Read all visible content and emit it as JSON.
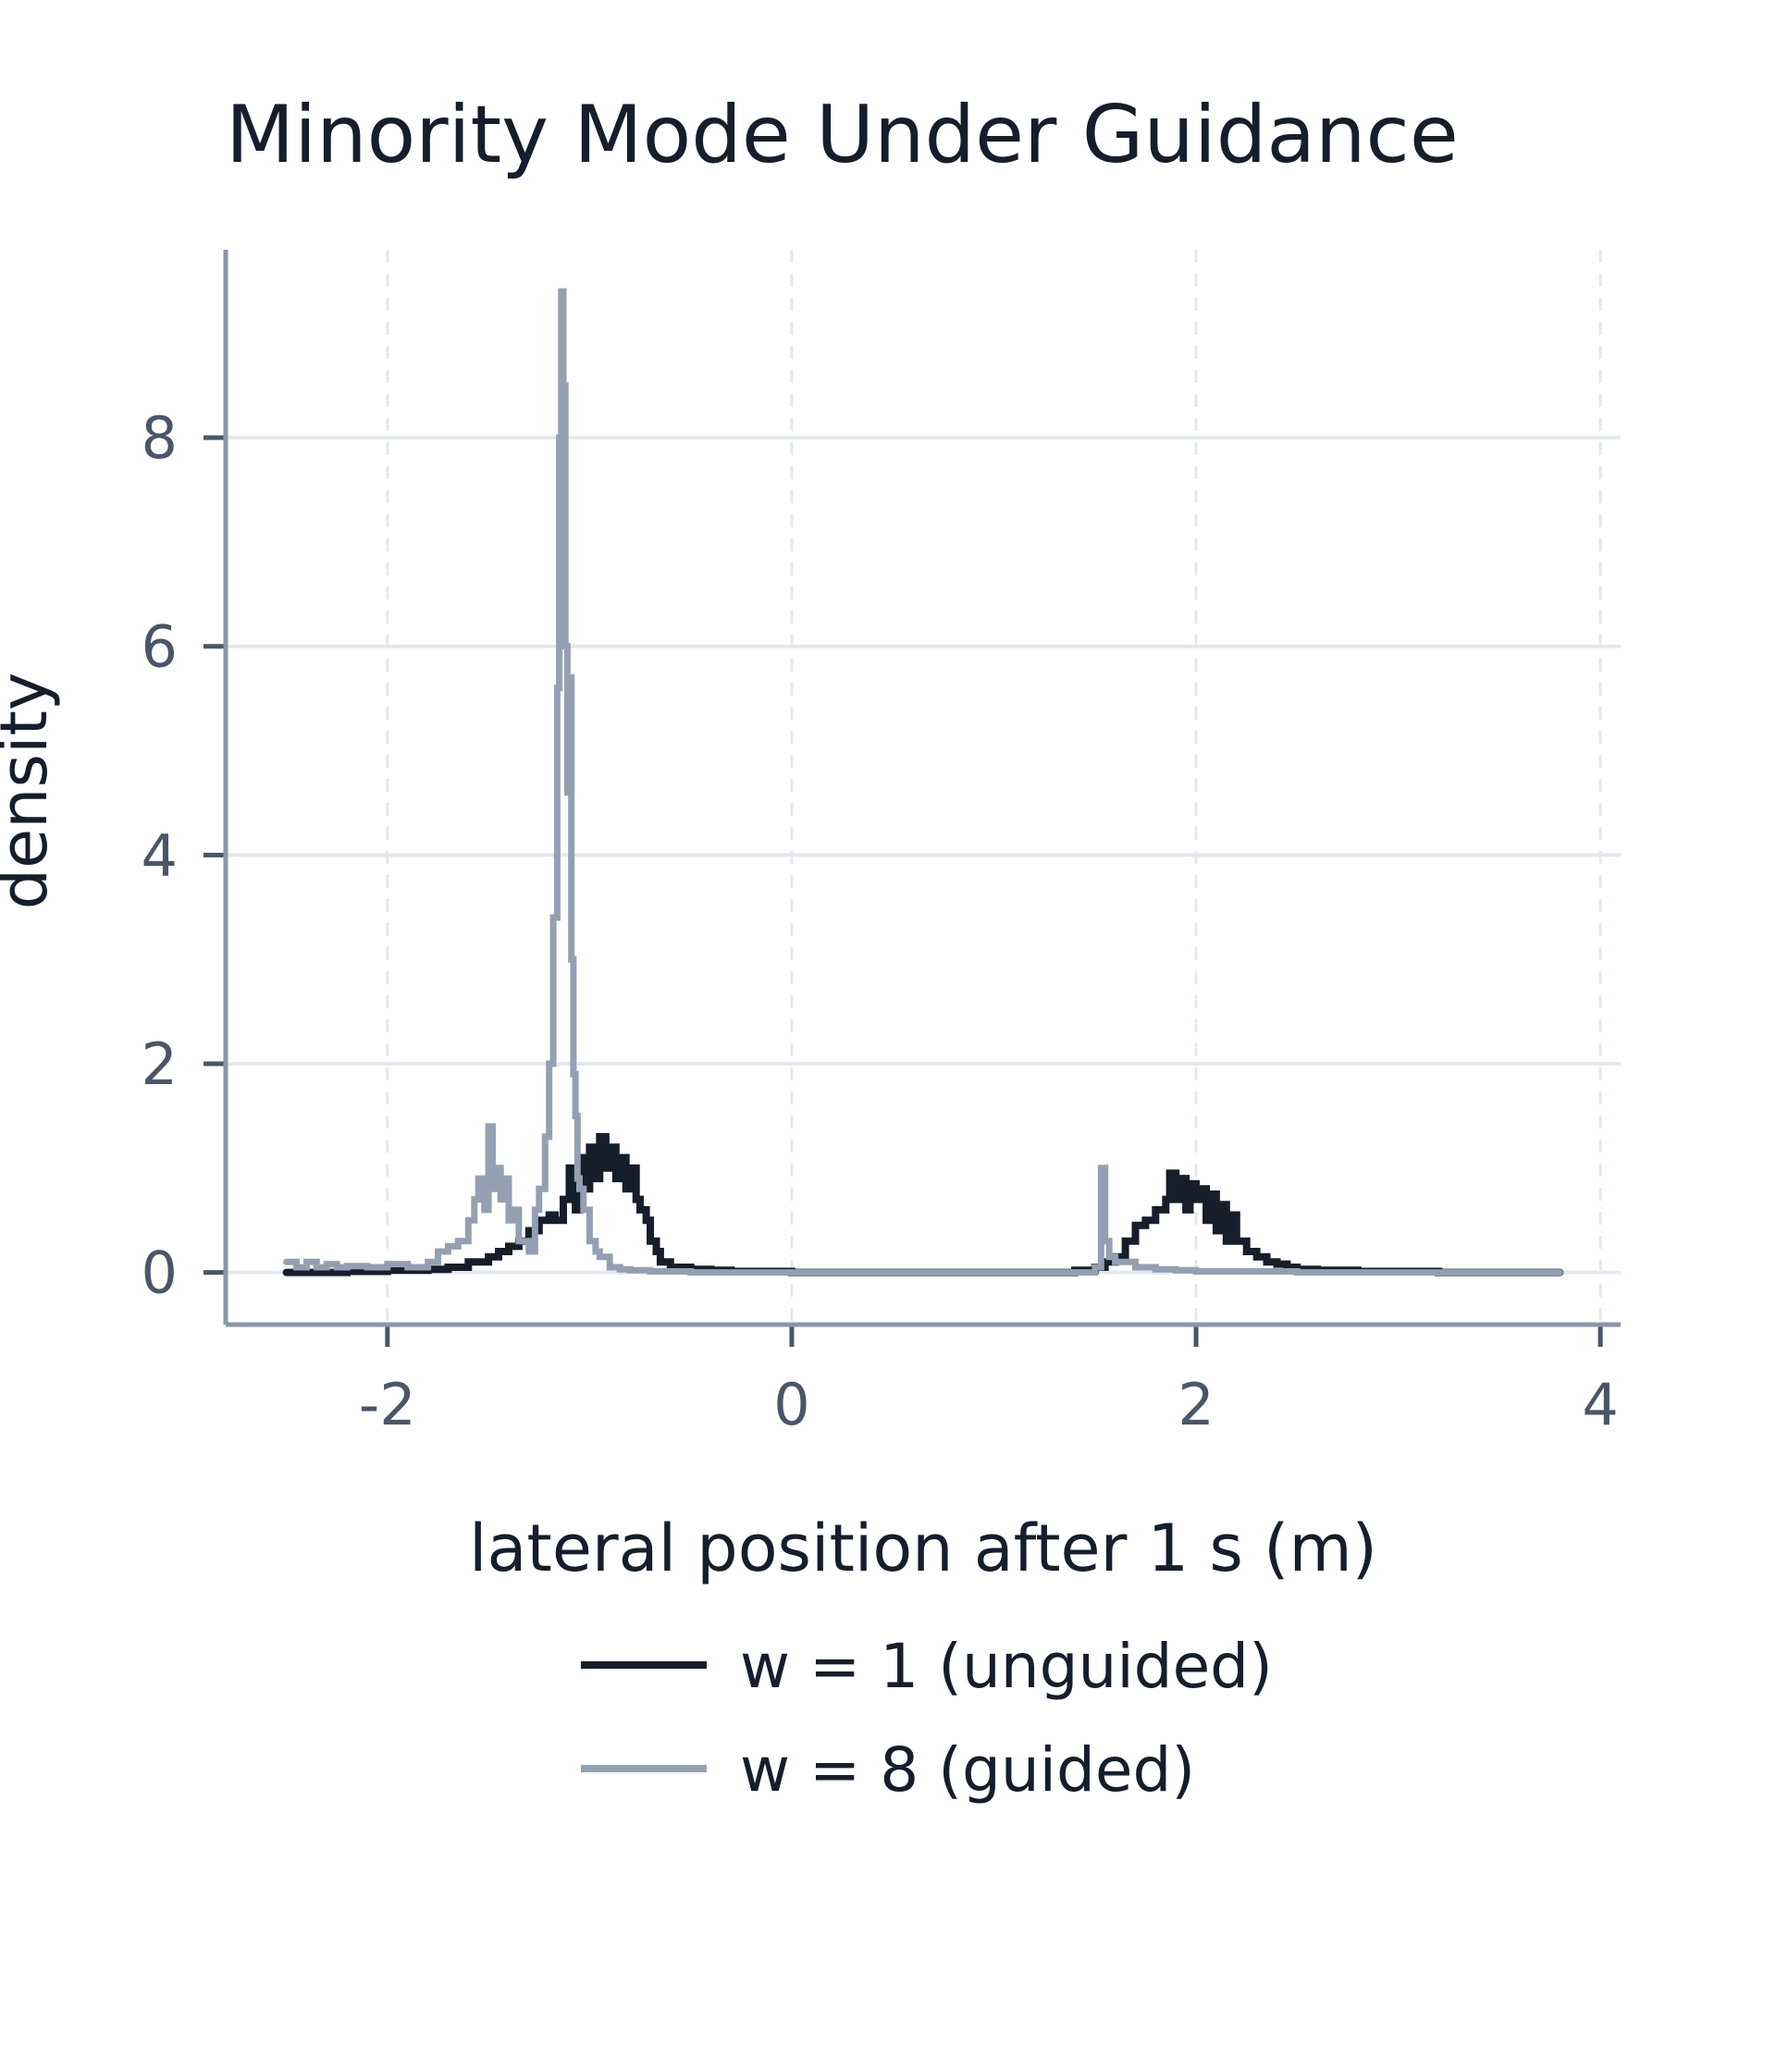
{
  "chart_data": {
    "type": "line",
    "title": "Minority Mode Under Guidance",
    "xlabel": "lateral position after 1 s (m)",
    "ylabel": "density",
    "xlim": [
      -2.8,
      4.1
    ],
    "ylim": [
      -0.5,
      9.8
    ],
    "x_ticks": [
      -2,
      0,
      2,
      4
    ],
    "y_ticks": [
      0,
      2,
      4,
      6,
      8
    ],
    "x_tick_labels": [
      "-2",
      "0",
      "2",
      "4"
    ],
    "y_tick_labels": [
      "0",
      "2",
      "4",
      "6",
      "8"
    ],
    "grid": true,
    "legend_position": "bottom",
    "step_style": "histogram",
    "series": [
      {
        "name": "w = 1 (unguided)",
        "color": "#161d2b",
        "x": [
          -2.5,
          -2.2,
          -2.0,
          -1.8,
          -1.7,
          -1.6,
          -1.5,
          -1.45,
          -1.4,
          -1.35,
          -1.3,
          -1.25,
          -1.2,
          -1.17,
          -1.13,
          -1.1,
          -1.07,
          -1.05,
          -1.02,
          -1.0,
          -0.97,
          -0.95,
          -0.92,
          -0.9,
          -0.87,
          -0.85,
          -0.82,
          -0.8,
          -0.77,
          -0.75,
          -0.72,
          -0.7,
          -0.67,
          -0.65,
          -0.6,
          -0.55,
          -0.5,
          -0.4,
          -0.3,
          -0.2,
          0.0,
          1.0,
          1.4,
          1.5,
          1.55,
          1.6,
          1.65,
          1.7,
          1.75,
          1.8,
          1.85,
          1.87,
          1.9,
          1.92,
          1.95,
          1.97,
          2.0,
          2.03,
          2.05,
          2.08,
          2.1,
          2.13,
          2.15,
          2.18,
          2.2,
          2.25,
          2.3,
          2.35,
          2.4,
          2.45,
          2.5,
          2.6,
          2.8,
          3.2,
          3.8
        ],
        "values": [
          0.0,
          0.01,
          0.02,
          0.03,
          0.05,
          0.1,
          0.15,
          0.2,
          0.25,
          0.3,
          0.4,
          0.5,
          0.55,
          0.5,
          0.7,
          1.0,
          0.6,
          1.1,
          0.8,
          1.2,
          0.9,
          1.3,
          1.0,
          1.2,
          0.9,
          1.1,
          0.8,
          1.0,
          0.7,
          0.6,
          0.5,
          0.3,
          0.2,
          0.1,
          0.05,
          0.05,
          0.03,
          0.02,
          0.01,
          0.01,
          0.0,
          0.0,
          0.02,
          0.05,
          0.1,
          0.15,
          0.3,
          0.45,
          0.5,
          0.6,
          0.7,
          0.95,
          0.7,
          0.9,
          0.6,
          0.85,
          0.7,
          0.8,
          0.5,
          0.75,
          0.4,
          0.65,
          0.3,
          0.55,
          0.3,
          0.2,
          0.15,
          0.1,
          0.08,
          0.05,
          0.03,
          0.02,
          0.01,
          0.0,
          0.0
        ]
      },
      {
        "name": "w = 8 (guided)",
        "color": "#94a0b2",
        "x": [
          -2.5,
          -2.45,
          -2.4,
          -2.35,
          -2.3,
          -2.25,
          -2.2,
          -2.1,
          -2.0,
          -1.9,
          -1.8,
          -1.75,
          -1.7,
          -1.65,
          -1.6,
          -1.57,
          -1.55,
          -1.52,
          -1.5,
          -1.48,
          -1.46,
          -1.44,
          -1.42,
          -1.4,
          -1.38,
          -1.35,
          -1.3,
          -1.27,
          -1.25,
          -1.22,
          -1.2,
          -1.18,
          -1.16,
          -1.15,
          -1.14,
          -1.13,
          -1.12,
          -1.11,
          -1.1,
          -1.09,
          -1.08,
          -1.07,
          -1.06,
          -1.05,
          -1.03,
          -1.0,
          -0.97,
          -0.95,
          -0.9,
          -0.85,
          -0.8,
          -0.7,
          -0.5,
          0.0,
          1.0,
          1.5,
          1.53,
          1.55,
          1.57,
          1.6,
          1.7,
          1.8,
          1.9,
          2.0,
          2.5,
          3.0,
          3.8
        ],
        "values": [
          0.1,
          0.05,
          0.1,
          0.05,
          0.08,
          0.05,
          0.06,
          0.05,
          0.08,
          0.05,
          0.1,
          0.2,
          0.25,
          0.3,
          0.5,
          0.7,
          0.9,
          0.6,
          1.4,
          0.8,
          1.0,
          0.7,
          0.9,
          0.5,
          0.6,
          0.3,
          0.2,
          0.6,
          0.8,
          1.3,
          2.0,
          3.4,
          5.6,
          8.0,
          9.4,
          8.5,
          6.0,
          4.6,
          5.7,
          3.0,
          1.9,
          1.5,
          0.9,
          0.8,
          0.6,
          0.3,
          0.2,
          0.15,
          0.05,
          0.03,
          0.02,
          0.01,
          0.0,
          0.0,
          0.0,
          0.05,
          1.0,
          0.3,
          0.15,
          0.1,
          0.05,
          0.03,
          0.02,
          0.01,
          0.0,
          0.0,
          0.0
        ]
      }
    ]
  }
}
